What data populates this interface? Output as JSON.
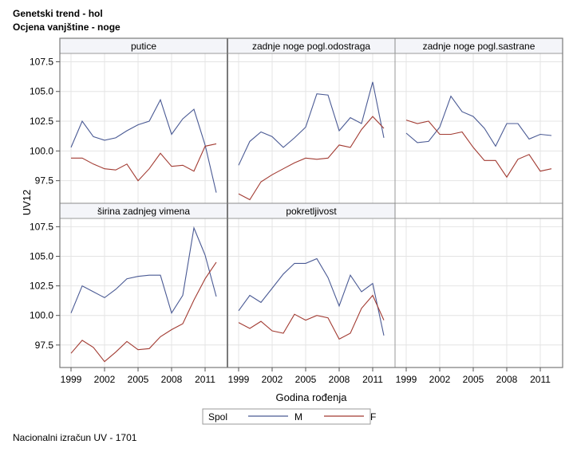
{
  "titles": {
    "line1": "Genetski trend - hol",
    "line2": "Ocjena vanjštine - noge"
  },
  "footnote": "Nacionalni izračun UV - 1701",
  "legend": {
    "title": "Spol",
    "entries": [
      {
        "label": "M",
        "color": "#4a5a94"
      },
      {
        "label": "F",
        "color": "#a23b32"
      }
    ]
  },
  "chart_data": {
    "type": "line",
    "layout": "panel-grid 2x3",
    "xlabel": "Godina rođenja",
    "ylabel": "UV12",
    "xlim": [
      1998,
      2013
    ],
    "ylim": [
      95.6,
      108.2
    ],
    "xticks": [
      "1999",
      "2002",
      "2005",
      "2008",
      "2011"
    ],
    "yticks": [
      "97.5",
      "100.0",
      "102.5",
      "105.0",
      "107.5"
    ],
    "grid": true,
    "legend_position": "bottom",
    "panels": [
      {
        "title": "putice",
        "series": [
          {
            "name": "M",
            "x": [
              1999,
              2000,
              2001,
              2002,
              2003,
              2004,
              2005,
              2006,
              2007,
              2008,
              2009,
              2010,
              2011,
              2012
            ],
            "y": [
              100.3,
              102.5,
              101.2,
              100.9,
              101.1,
              101.7,
              102.2,
              102.5,
              104.3,
              101.4,
              102.7,
              103.5,
              100.5,
              96.5
            ]
          },
          {
            "name": "F",
            "x": [
              1999,
              2000,
              2001,
              2002,
              2003,
              2004,
              2005,
              2006,
              2007,
              2008,
              2009,
              2010,
              2011,
              2012
            ],
            "y": [
              99.4,
              99.4,
              98.9,
              98.5,
              98.4,
              98.9,
              97.5,
              98.5,
              99.8,
              98.7,
              98.8,
              98.3,
              100.4,
              100.6
            ]
          }
        ]
      },
      {
        "title": "zadnje noge pogl.odostraga",
        "series": [
          {
            "name": "M",
            "x": [
              1999,
              2000,
              2001,
              2002,
              2003,
              2004,
              2005,
              2006,
              2007,
              2008,
              2009,
              2010,
              2011,
              2012
            ],
            "y": [
              98.8,
              100.8,
              101.6,
              101.2,
              100.3,
              101.1,
              102.0,
              104.8,
              104.7,
              101.7,
              102.8,
              102.3,
              105.8,
              101.1
            ]
          },
          {
            "name": "F",
            "x": [
              1999,
              2000,
              2001,
              2002,
              2003,
              2004,
              2005,
              2006,
              2007,
              2008,
              2009,
              2010,
              2011,
              2012
            ],
            "y": [
              96.4,
              95.9,
              97.4,
              98.0,
              98.5,
              99.0,
              99.4,
              99.3,
              99.4,
              100.5,
              100.3,
              101.8,
              102.9,
              101.9
            ]
          }
        ]
      },
      {
        "title": "zadnje noge pogl.sastrane",
        "series": [
          {
            "name": "M",
            "x": [
              1999,
              2000,
              2001,
              2002,
              2003,
              2004,
              2005,
              2006,
              2007,
              2008,
              2009,
              2010,
              2011,
              2012
            ],
            "y": [
              101.5,
              100.7,
              100.8,
              102.0,
              104.6,
              103.3,
              102.9,
              101.9,
              100.4,
              102.3,
              102.3,
              101.0,
              101.4,
              101.3
            ]
          },
          {
            "name": "F",
            "x": [
              1999,
              2000,
              2001,
              2002,
              2003,
              2004,
              2005,
              2006,
              2007,
              2008,
              2009,
              2010,
              2011,
              2012
            ],
            "y": [
              102.6,
              102.3,
              102.5,
              101.4,
              101.4,
              101.6,
              100.3,
              99.2,
              99.2,
              97.8,
              99.3,
              99.7,
              98.3,
              98.5
            ]
          }
        ]
      },
      {
        "title": "širina zadnjeg vimena",
        "series": [
          {
            "name": "M",
            "x": [
              1999,
              2000,
              2001,
              2002,
              2003,
              2004,
              2005,
              2006,
              2007,
              2008,
              2009,
              2010,
              2011,
              2012
            ],
            "y": [
              100.2,
              102.5,
              102.0,
              101.5,
              102.2,
              103.1,
              103.3,
              103.4,
              103.4,
              100.2,
              101.7,
              107.4,
              105.1,
              101.6
            ]
          },
          {
            "name": "F",
            "x": [
              1999,
              2000,
              2001,
              2002,
              2003,
              2004,
              2005,
              2006,
              2007,
              2008,
              2009,
              2010,
              2011,
              2012
            ],
            "y": [
              96.8,
              97.9,
              97.3,
              96.1,
              96.9,
              97.8,
              97.1,
              97.2,
              98.2,
              98.8,
              99.3,
              101.3,
              103.1,
              104.5
            ]
          }
        ]
      },
      {
        "title": "pokretljivost",
        "series": [
          {
            "name": "M",
            "x": [
              1999,
              2000,
              2001,
              2002,
              2003,
              2004,
              2005,
              2006,
              2007,
              2008,
              2009,
              2010,
              2011,
              2012
            ],
            "y": [
              100.4,
              101.7,
              101.1,
              102.3,
              103.5,
              104.4,
              104.4,
              104.8,
              103.2,
              100.8,
              103.4,
              102.0,
              102.7,
              98.3
            ]
          },
          {
            "name": "F",
            "x": [
              1999,
              2000,
              2001,
              2002,
              2003,
              2004,
              2005,
              2006,
              2007,
              2008,
              2009,
              2010,
              2011,
              2012
            ],
            "y": [
              99.4,
              98.9,
              99.5,
              98.7,
              98.5,
              100.1,
              99.6,
              100.0,
              99.8,
              98.0,
              98.5,
              100.6,
              101.7,
              99.6
            ]
          }
        ]
      }
    ]
  }
}
